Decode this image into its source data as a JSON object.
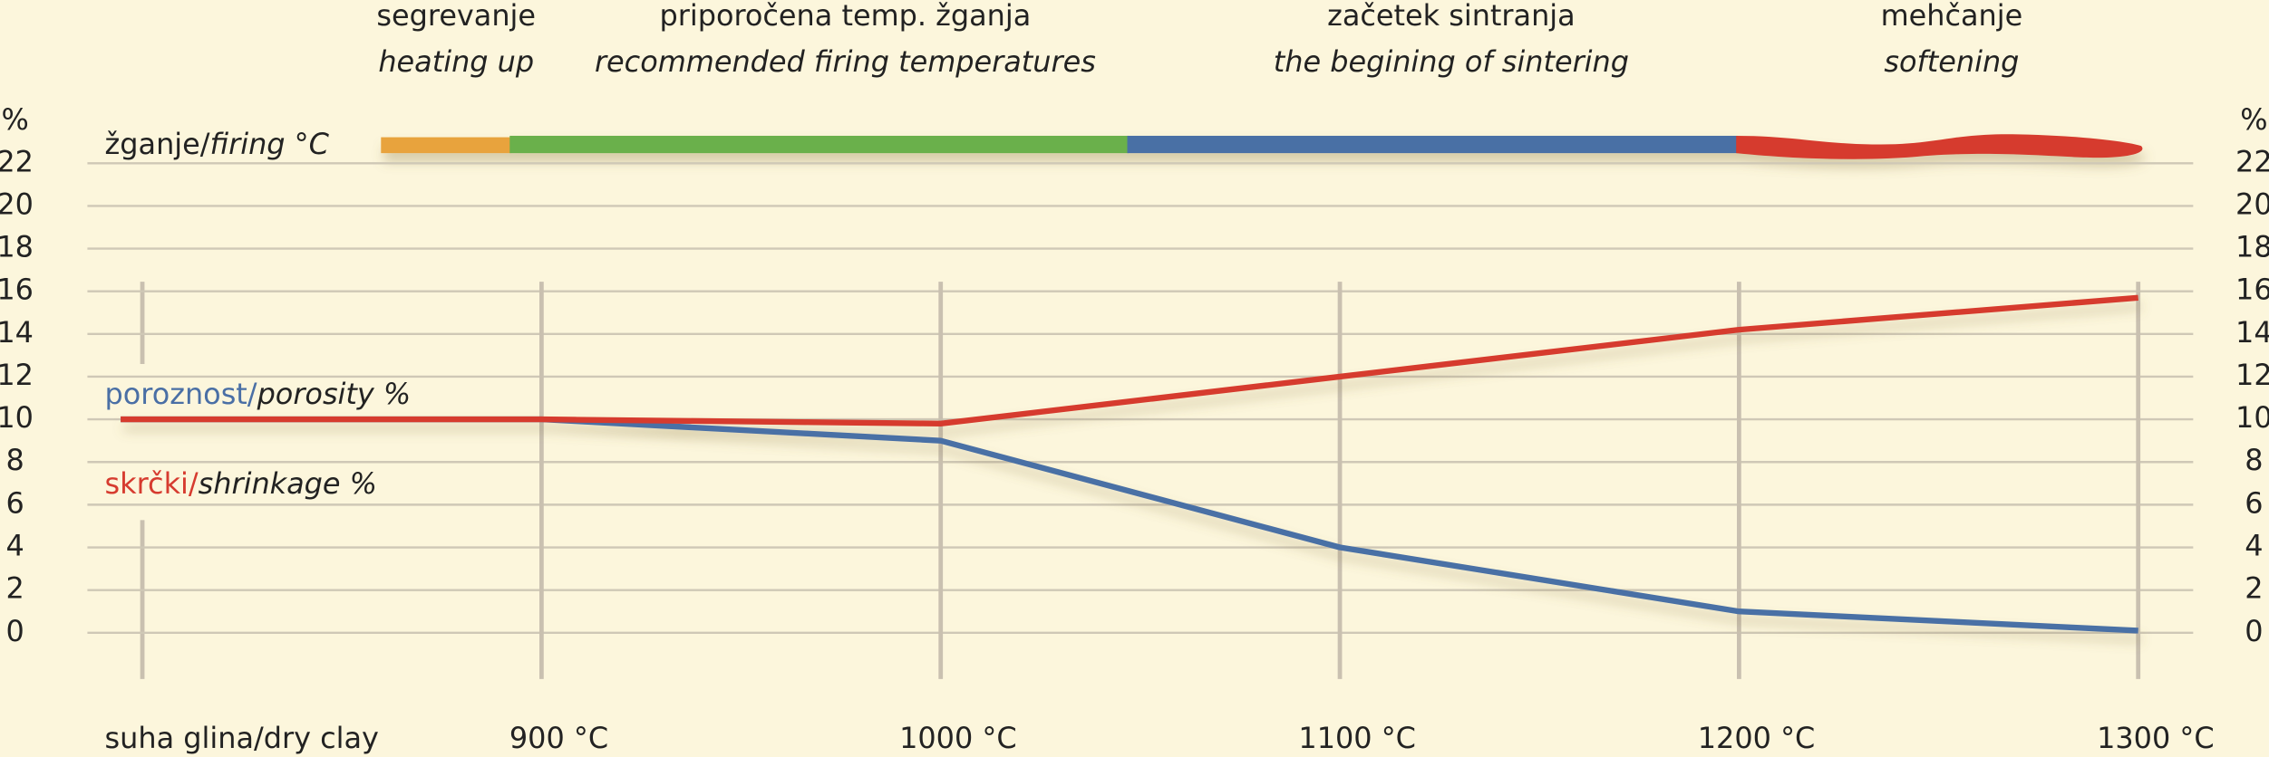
{
  "chart_data": {
    "type": "line",
    "y_unit": "%",
    "firing_label": "žganje/",
    "firing_label_en": "firing °C",
    "phases": [
      {
        "name": "segrevanje",
        "name_en": "heating up"
      },
      {
        "name": "priporočena temp. žganja",
        "name_en": "recommended firing temperatures"
      },
      {
        "name": "začetek sintranja",
        "name_en": "the begining of sintering"
      },
      {
        "name": "mehčanje",
        "name_en": "softening"
      }
    ],
    "categories": [
      "suha glina/dry clay",
      "900 °C",
      "1000 °C",
      "1100 °C",
      "1200 °C",
      "1300 °C"
    ],
    "series": [
      {
        "name": "poroznost/",
        "name_en": "porosity %",
        "color": "#4a6fa5",
        "values": [
          10,
          10,
          9,
          4,
          1,
          0.1
        ]
      },
      {
        "name": "skrčki/",
        "name_en": "shrinkage %",
        "color": "#d63b2f",
        "values": [
          10,
          10,
          9.8,
          12,
          14.2,
          15.7
        ]
      }
    ],
    "ylim": [
      0,
      22
    ],
    "yticks": [
      0,
      2,
      4,
      6,
      8,
      10,
      12,
      14,
      16,
      18,
      20,
      22
    ],
    "grid": true
  }
}
